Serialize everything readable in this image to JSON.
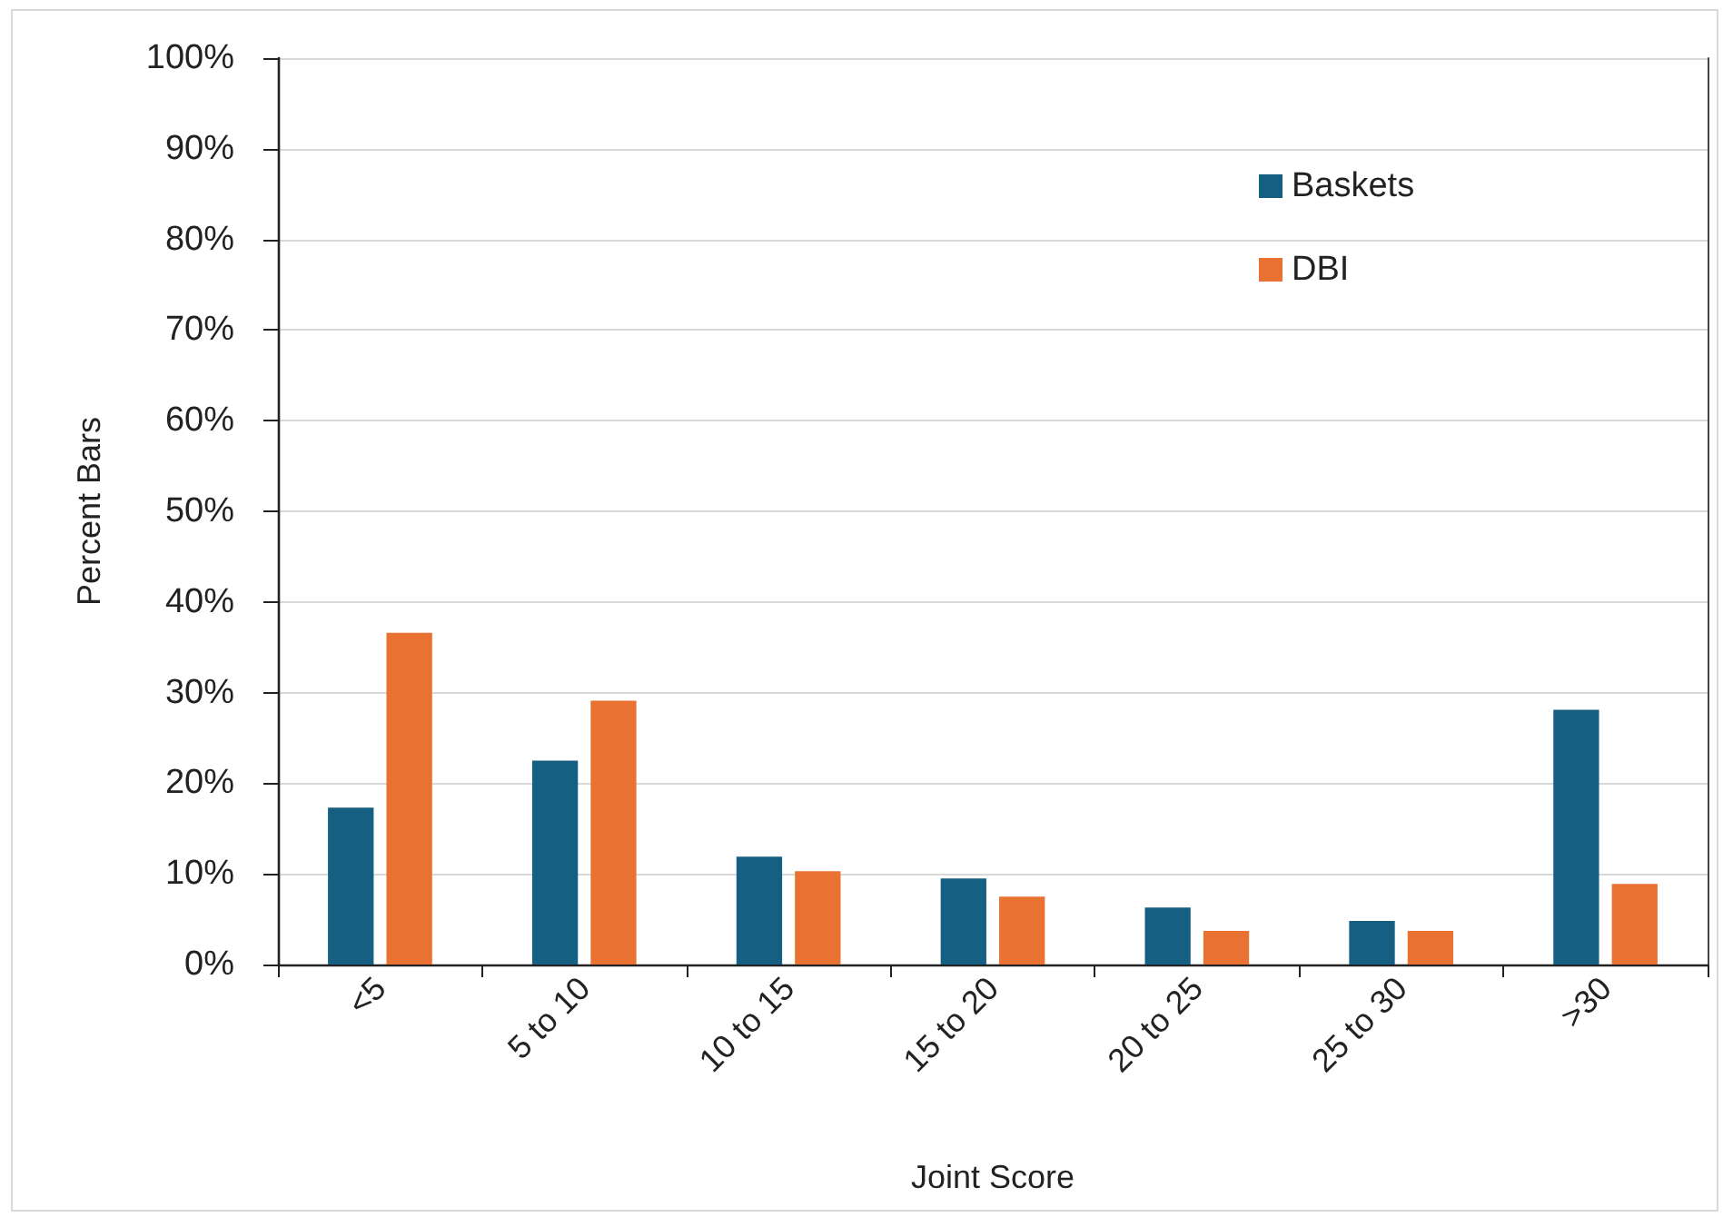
{
  "chart_data": {
    "type": "bar",
    "xlabel": "Joint Score",
    "ylabel": "Percent Bars",
    "categories": [
      "<5",
      "5 to 10",
      "10 to 15",
      "15 to 20",
      "20 to 25",
      "25 to 30",
      ">30"
    ],
    "series": [
      {
        "name": "Baskets",
        "color": "#156082",
        "values": [
          17.3,
          22.5,
          11.9,
          9.5,
          6.3,
          4.8,
          28.1
        ]
      },
      {
        "name": "DBI",
        "color": "#e97132",
        "values": [
          36.6,
          29.1,
          10.3,
          7.5,
          3.7,
          3.7,
          8.9
        ]
      }
    ],
    "ylim": [
      0,
      100
    ],
    "yticks": [
      {
        "value": 0,
        "label": "0%"
      },
      {
        "value": 10,
        "label": "10%"
      },
      {
        "value": 20,
        "label": "20%"
      },
      {
        "value": 30,
        "label": "30%"
      },
      {
        "value": 40,
        "label": "40%"
      },
      {
        "value": 50,
        "label": "50%"
      },
      {
        "value": 60,
        "label": "60%"
      },
      {
        "value": 70,
        "label": "70%"
      },
      {
        "value": 80,
        "label": "80%"
      },
      {
        "value": 90,
        "label": "90%"
      },
      {
        "value": 100,
        "label": "100%"
      }
    ],
    "grid": "y",
    "legend": "top right"
  }
}
